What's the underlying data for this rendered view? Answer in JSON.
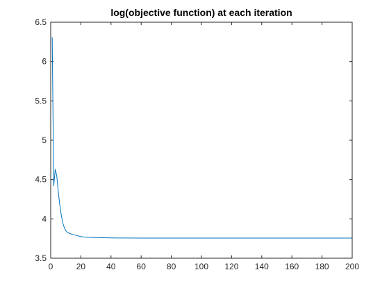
{
  "chart_data": {
    "type": "line",
    "title": "log(objective function) at each iteration",
    "xlabel": "",
    "ylabel": "",
    "xlim": [
      0,
      200
    ],
    "ylim": [
      3.5,
      6.5
    ],
    "xticks": [
      0,
      20,
      40,
      60,
      80,
      100,
      120,
      140,
      160,
      180,
      200
    ],
    "yticks": [
      3.5,
      4,
      4.5,
      5,
      5.5,
      6,
      6.5
    ],
    "xtick_labels": [
      "0",
      "20",
      "40",
      "60",
      "80",
      "100",
      "120",
      "140",
      "160",
      "180",
      "200"
    ],
    "ytick_labels": [
      "3.5",
      "4",
      "4.5",
      "5",
      "5.5",
      "6",
      "6.5"
    ],
    "grid": false,
    "legend": "none",
    "line_color": "#0072BD",
    "series": [
      {
        "x": [
          1,
          2,
          3,
          4,
          5,
          6,
          7,
          8,
          9,
          10,
          11,
          12,
          14,
          16,
          18,
          20,
          22,
          25,
          30,
          35,
          40,
          45,
          50,
          60,
          80,
          100,
          150,
          200
        ],
        "y": [
          6.31,
          4.42,
          4.63,
          4.55,
          4.35,
          4.18,
          4.05,
          3.95,
          3.89,
          3.85,
          3.83,
          3.82,
          3.805,
          3.795,
          3.785,
          3.775,
          3.77,
          3.765,
          3.762,
          3.76,
          3.758,
          3.757,
          3.757,
          3.756,
          3.756,
          3.756,
          3.756,
          3.756
        ]
      }
    ]
  }
}
